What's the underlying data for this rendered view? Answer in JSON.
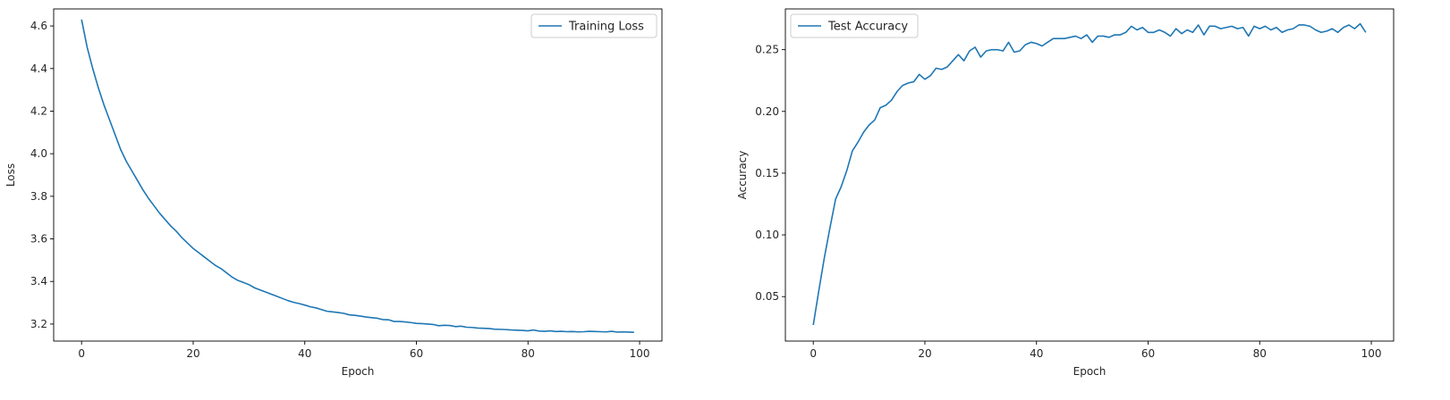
{
  "colors": {
    "series": "#1f77b4",
    "axis": "#000000",
    "text": "#262626"
  },
  "chart_data": [
    {
      "type": "line",
      "xlabel": "Epoch",
      "ylabel": "Loss",
      "xlim": [
        -5,
        104
      ],
      "ylim": [
        3.12,
        4.68
      ],
      "xticks": [
        0,
        20,
        40,
        60,
        80,
        100
      ],
      "yticks": [
        3.2,
        3.4,
        3.6,
        3.8,
        4.0,
        4.2,
        4.4,
        4.6
      ],
      "ytick_labels": [
        "3.2",
        "3.4",
        "3.6",
        "3.8",
        "4.0",
        "4.2",
        "4.4",
        "4.6"
      ],
      "grid": false,
      "legend": "upper right",
      "series": [
        {
          "name": "Training Loss",
          "x": [
            0,
            1,
            2,
            3,
            4,
            5,
            6,
            7,
            8,
            9,
            10,
            11,
            12,
            13,
            14,
            15,
            16,
            17,
            18,
            19,
            20,
            21,
            22,
            23,
            24,
            25,
            26,
            27,
            28,
            29,
            30,
            31,
            32,
            33,
            34,
            35,
            36,
            37,
            38,
            39,
            40,
            41,
            42,
            43,
            44,
            45,
            46,
            47,
            48,
            49,
            50,
            51,
            52,
            53,
            54,
            55,
            56,
            57,
            58,
            59,
            60,
            61,
            62,
            63,
            64,
            65,
            66,
            67,
            68,
            69,
            70,
            71,
            72,
            73,
            74,
            75,
            76,
            77,
            78,
            79,
            80,
            81,
            82,
            83,
            84,
            85,
            86,
            87,
            88,
            89,
            90,
            91,
            92,
            93,
            94,
            95,
            96,
            97,
            98,
            99
          ],
          "y": [
            4.63,
            4.5,
            4.4,
            4.31,
            4.23,
            4.16,
            4.09,
            4.02,
            3.965,
            3.92,
            3.875,
            3.83,
            3.79,
            3.755,
            3.72,
            3.69,
            3.66,
            3.635,
            3.605,
            3.58,
            3.555,
            3.535,
            3.515,
            3.495,
            3.475,
            3.46,
            3.44,
            3.42,
            3.405,
            3.395,
            3.385,
            3.37,
            3.36,
            3.35,
            3.34,
            3.33,
            3.32,
            3.31,
            3.302,
            3.296,
            3.289,
            3.281,
            3.276,
            3.268,
            3.26,
            3.257,
            3.254,
            3.25,
            3.243,
            3.241,
            3.237,
            3.233,
            3.23,
            3.227,
            3.221,
            3.22,
            3.212,
            3.212,
            3.21,
            3.207,
            3.203,
            3.202,
            3.2,
            3.198,
            3.192,
            3.194,
            3.193,
            3.188,
            3.19,
            3.185,
            3.184,
            3.181,
            3.18,
            3.179,
            3.176,
            3.175,
            3.174,
            3.172,
            3.171,
            3.17,
            3.168,
            3.172,
            3.167,
            3.166,
            3.168,
            3.165,
            3.166,
            3.164,
            3.165,
            3.163,
            3.164,
            3.166,
            3.165,
            3.164,
            3.163,
            3.166,
            3.162,
            3.163,
            3.162,
            3.161
          ]
        }
      ]
    },
    {
      "type": "line",
      "xlabel": "Epoch",
      "ylabel": "Accuracy",
      "xlim": [
        -5,
        104
      ],
      "ylim": [
        0.014,
        0.283
      ],
      "xticks": [
        0,
        20,
        40,
        60,
        80,
        100
      ],
      "yticks": [
        0.05,
        0.1,
        0.15,
        0.2,
        0.25
      ],
      "ytick_labels": [
        "0.05",
        "0.10",
        "0.15",
        "0.20",
        "0.25"
      ],
      "grid": false,
      "legend": "upper left",
      "series": [
        {
          "name": "Test Accuracy",
          "x": [
            0,
            1,
            2,
            3,
            4,
            5,
            6,
            7,
            8,
            9,
            10,
            11,
            12,
            13,
            14,
            15,
            16,
            17,
            18,
            19,
            20,
            21,
            22,
            23,
            24,
            25,
            26,
            27,
            28,
            29,
            30,
            31,
            32,
            33,
            34,
            35,
            36,
            37,
            38,
            39,
            40,
            41,
            42,
            43,
            44,
            45,
            46,
            47,
            48,
            49,
            50,
            51,
            52,
            53,
            54,
            55,
            56,
            57,
            58,
            59,
            60,
            61,
            62,
            63,
            64,
            65,
            66,
            67,
            68,
            69,
            70,
            71,
            72,
            73,
            74,
            75,
            76,
            77,
            78,
            79,
            80,
            81,
            82,
            83,
            84,
            85,
            86,
            87,
            88,
            89,
            90,
            91,
            92,
            93,
            94,
            95,
            96,
            97,
            98,
            99
          ],
          "y": [
            0.027,
            0.055,
            0.082,
            0.106,
            0.129,
            0.139,
            0.152,
            0.168,
            0.175,
            0.183,
            0.189,
            0.193,
            0.203,
            0.205,
            0.209,
            0.216,
            0.221,
            0.223,
            0.224,
            0.23,
            0.226,
            0.229,
            0.235,
            0.234,
            0.236,
            0.241,
            0.246,
            0.241,
            0.249,
            0.252,
            0.244,
            0.249,
            0.25,
            0.25,
            0.249,
            0.256,
            0.248,
            0.249,
            0.254,
            0.256,
            0.255,
            0.253,
            0.256,
            0.259,
            0.259,
            0.259,
            0.26,
            0.261,
            0.259,
            0.262,
            0.256,
            0.261,
            0.261,
            0.26,
            0.262,
            0.262,
            0.264,
            0.269,
            0.266,
            0.268,
            0.264,
            0.264,
            0.266,
            0.264,
            0.261,
            0.267,
            0.263,
            0.266,
            0.264,
            0.27,
            0.262,
            0.269,
            0.269,
            0.267,
            0.268,
            0.269,
            0.267,
            0.268,
            0.261,
            0.269,
            0.267,
            0.269,
            0.266,
            0.268,
            0.264,
            0.266,
            0.267,
            0.27,
            0.27,
            0.269,
            0.266,
            0.264,
            0.265,
            0.267,
            0.264,
            0.268,
            0.27,
            0.267,
            0.271,
            0.264
          ]
        }
      ]
    }
  ]
}
